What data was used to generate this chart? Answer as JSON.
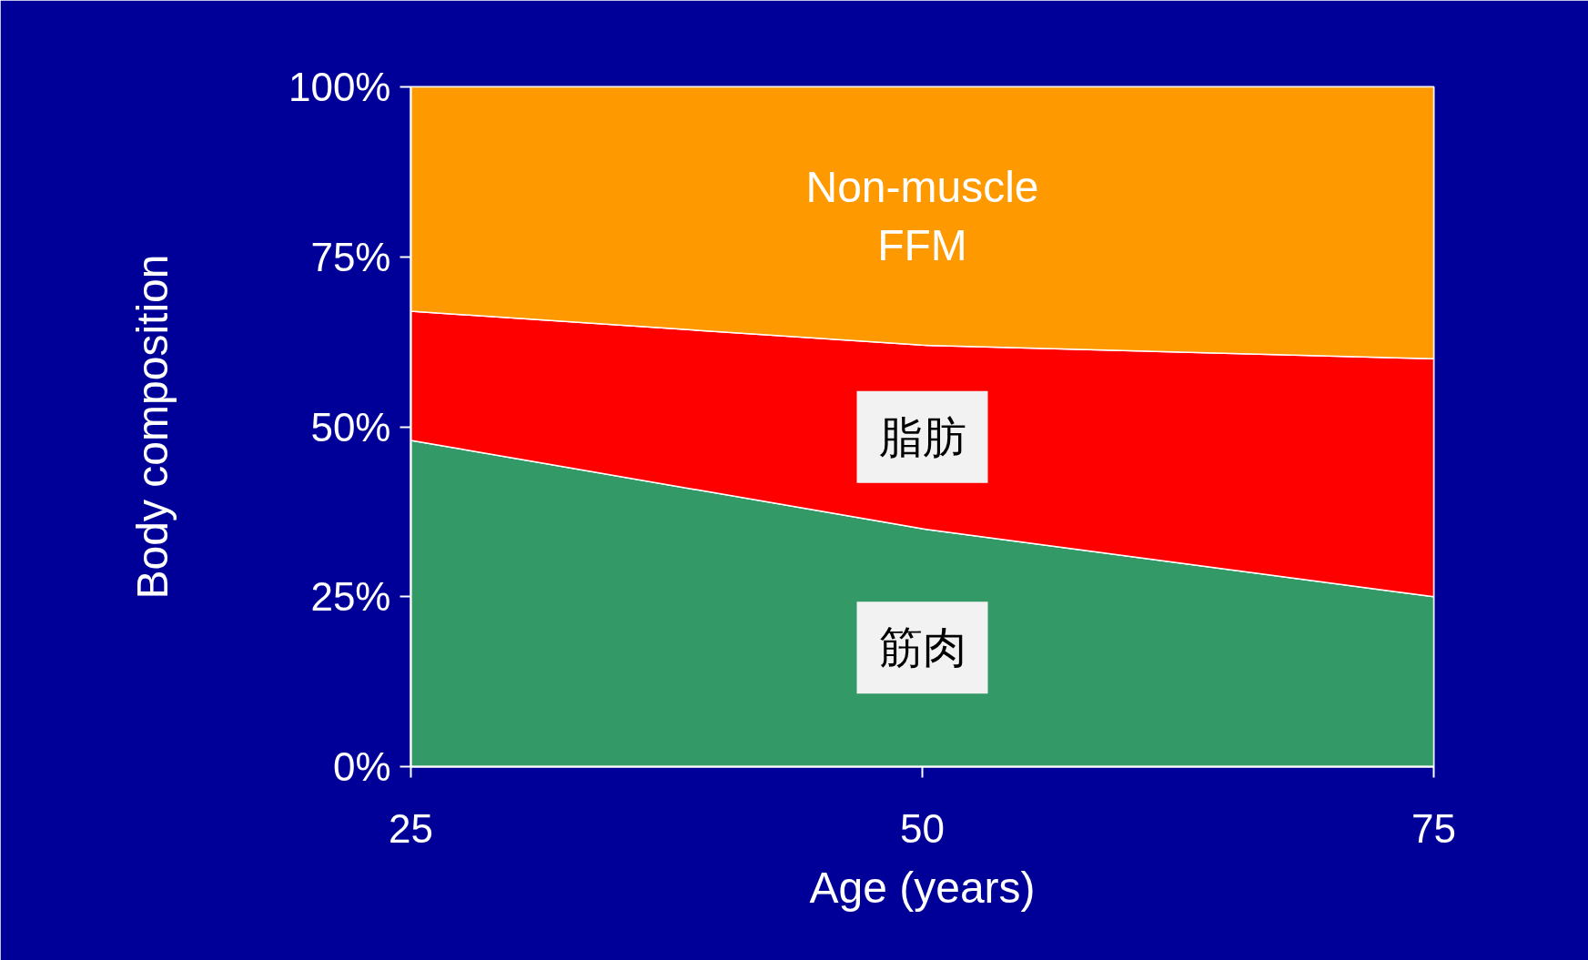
{
  "chart_data": {
    "type": "area",
    "stacked": true,
    "xlabel": "Age (years)",
    "ylabel": "Body composition",
    "x": [
      25,
      50,
      75
    ],
    "series": [
      {
        "name": "筋肉",
        "color": "#339966",
        "values": [
          48,
          35,
          25
        ]
      },
      {
        "name": "脂肪",
        "color": "#ff0000",
        "values": [
          19,
          27,
          35
        ]
      },
      {
        "name": "Non-muscle FFM",
        "color": "#ff9900",
        "values": [
          33,
          38,
          40
        ]
      }
    ],
    "xlim": [
      25,
      75
    ],
    "xticks": [
      25,
      50,
      75
    ],
    "ylim": [
      0,
      100
    ],
    "yticks": [
      {
        "value": 0,
        "label": "0%"
      },
      {
        "value": 25,
        "label": "25%"
      },
      {
        "value": 50,
        "label": "50%"
      },
      {
        "value": 75,
        "label": "75%"
      },
      {
        "value": 100,
        "label": "100%"
      }
    ],
    "legend": false
  }
}
